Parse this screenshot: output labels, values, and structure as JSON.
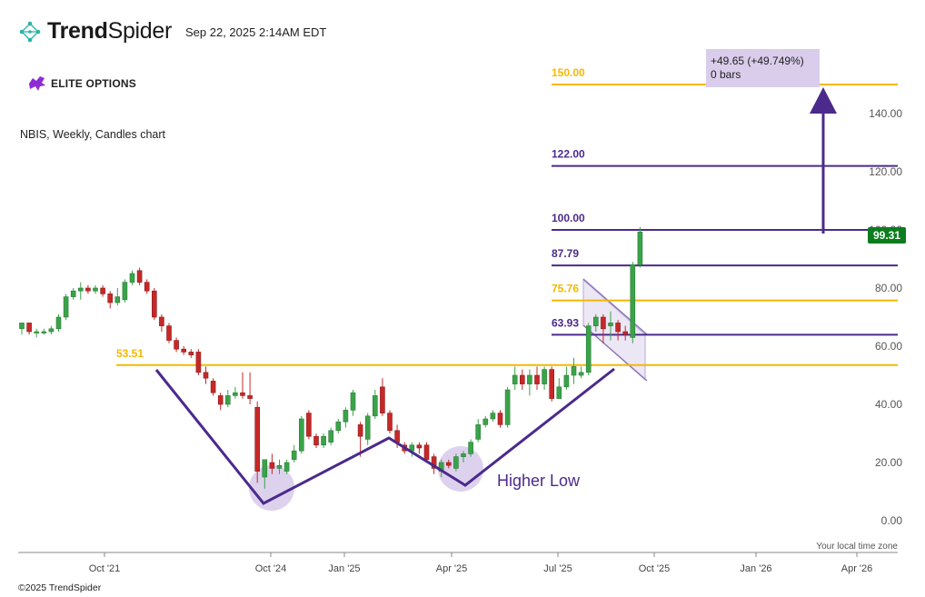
{
  "header": {
    "brand_bold": "Trend",
    "brand_light": "Spider",
    "timestamp": "Sep 22, 2025 2:14AM EDT",
    "logo_icon": "trendspider-dots-icon"
  },
  "watermark": {
    "text": "ELITE OPTIONS",
    "icon": "purple-bull-icon"
  },
  "footer": {
    "copyright": "©2025 TrendSpider",
    "timezone_note": "Your local time zone"
  },
  "colors": {
    "up": "#3aa34a",
    "down": "#c62828",
    "purple": "#4b2a8c",
    "gold": "#f5b800",
    "price_tag": "#0b7d1e",
    "highlight": "#d9cdeb"
  },
  "chart_data": {
    "type": "candlestick",
    "title": "NBIS, Weekly, Candles chart",
    "ylim": [
      -4,
      152
    ],
    "y_ticks": [
      0,
      20,
      40,
      60,
      80,
      100,
      120,
      140
    ],
    "y_tick_labels": [
      "0.00",
      "20.00",
      "40.00",
      "60.00",
      "80.00",
      "100.00",
      "120.00",
      "140.00"
    ],
    "x_tick_labels": [
      "Oct '21",
      "Oct '24",
      "Jan '25",
      "Apr '25",
      "Jul '25",
      "Oct '25",
      "Jan '26",
      "Apr '26"
    ],
    "last_price": "99.31",
    "candles": [
      {
        "o": 66,
        "h": 68,
        "l": 64,
        "c": 68
      },
      {
        "o": 68,
        "h": 68,
        "l": 64,
        "c": 65
      },
      {
        "o": 65,
        "h": 66,
        "l": 63,
        "c": 65
      },
      {
        "o": 65,
        "h": 66,
        "l": 64,
        "c": 65
      },
      {
        "o": 65,
        "h": 67,
        "l": 64,
        "c": 66
      },
      {
        "o": 66,
        "h": 71,
        "l": 65,
        "c": 70
      },
      {
        "o": 70,
        "h": 78,
        "l": 69,
        "c": 77
      },
      {
        "o": 77,
        "h": 80,
        "l": 76,
        "c": 79
      },
      {
        "o": 79,
        "h": 82,
        "l": 76,
        "c": 80
      },
      {
        "o": 80,
        "h": 81,
        "l": 78,
        "c": 79
      },
      {
        "o": 79,
        "h": 81,
        "l": 78,
        "c": 80
      },
      {
        "o": 80,
        "h": 81,
        "l": 77,
        "c": 78
      },
      {
        "o": 78,
        "h": 79,
        "l": 73,
        "c": 75
      },
      {
        "o": 75,
        "h": 80,
        "l": 74,
        "c": 77
      },
      {
        "o": 76,
        "h": 83,
        "l": 75,
        "c": 82
      },
      {
        "o": 82,
        "h": 86,
        "l": 81,
        "c": 85
      },
      {
        "o": 86,
        "h": 87,
        "l": 81,
        "c": 82
      },
      {
        "o": 82,
        "h": 83,
        "l": 78,
        "c": 79
      },
      {
        "o": 79,
        "h": 80,
        "l": 69,
        "c": 70
      },
      {
        "o": 70,
        "h": 71,
        "l": 65,
        "c": 67
      },
      {
        "o": 67,
        "h": 68,
        "l": 61,
        "c": 62
      },
      {
        "o": 62,
        "h": 63,
        "l": 58,
        "c": 59
      },
      {
        "o": 59,
        "h": 60,
        "l": 57,
        "c": 58
      },
      {
        "o": 58,
        "h": 59,
        "l": 56,
        "c": 57
      },
      {
        "o": 58,
        "h": 59,
        "l": 50,
        "c": 51
      },
      {
        "o": 51,
        "h": 53,
        "l": 47,
        "c": 49
      },
      {
        "o": 48,
        "h": 49,
        "l": 43,
        "c": 44
      },
      {
        "o": 43,
        "h": 44,
        "l": 38,
        "c": 40
      },
      {
        "o": 40,
        "h": 45,
        "l": 39,
        "c": 43
      },
      {
        "o": 43,
        "h": 46,
        "l": 42,
        "c": 44
      },
      {
        "o": 44,
        "h": 51,
        "l": 42,
        "c": 43
      },
      {
        "o": 43,
        "h": 51,
        "l": 40,
        "c": 42
      },
      {
        "o": 39,
        "h": 41,
        "l": 13,
        "c": 17
      },
      {
        "o": 15,
        "h": 21,
        "l": 11,
        "c": 21
      },
      {
        "o": 20,
        "h": 23,
        "l": 16,
        "c": 18
      },
      {
        "o": 18,
        "h": 21,
        "l": 16,
        "c": 19
      },
      {
        "o": 17,
        "h": 21,
        "l": 16,
        "c": 20
      },
      {
        "o": 21,
        "h": 26,
        "l": 20,
        "c": 24
      },
      {
        "o": 24,
        "h": 36,
        "l": 23,
        "c": 35
      },
      {
        "o": 37,
        "h": 38,
        "l": 28,
        "c": 29
      },
      {
        "o": 29,
        "h": 30,
        "l": 25,
        "c": 26
      },
      {
        "o": 26,
        "h": 30,
        "l": 25,
        "c": 29
      },
      {
        "o": 27,
        "h": 32,
        "l": 26,
        "c": 31
      },
      {
        "o": 31,
        "h": 35,
        "l": 30,
        "c": 34
      },
      {
        "o": 34,
        "h": 39,
        "l": 32,
        "c": 38
      },
      {
        "o": 38,
        "h": 45,
        "l": 36,
        "c": 44
      },
      {
        "o": 33,
        "h": 34,
        "l": 22,
        "c": 29
      },
      {
        "o": 28,
        "h": 37,
        "l": 26,
        "c": 36
      },
      {
        "o": 36,
        "h": 45,
        "l": 35,
        "c": 43
      },
      {
        "o": 46,
        "h": 49,
        "l": 36,
        "c": 37
      },
      {
        "o": 37,
        "h": 38,
        "l": 30,
        "c": 31
      },
      {
        "o": 31,
        "h": 33,
        "l": 25,
        "c": 27
      },
      {
        "o": 26,
        "h": 27,
        "l": 23,
        "c": 24
      },
      {
        "o": 24,
        "h": 27,
        "l": 22,
        "c": 26
      },
      {
        "o": 26,
        "h": 27,
        "l": 23,
        "c": 25
      },
      {
        "o": 26,
        "h": 27,
        "l": 20,
        "c": 21
      },
      {
        "o": 22,
        "h": 23,
        "l": 16,
        "c": 18
      },
      {
        "o": 17,
        "h": 21,
        "l": 15,
        "c": 20
      },
      {
        "o": 20,
        "h": 21,
        "l": 18,
        "c": 19
      },
      {
        "o": 18,
        "h": 23,
        "l": 17,
        "c": 22
      },
      {
        "o": 22,
        "h": 24,
        "l": 20,
        "c": 23
      },
      {
        "o": 23,
        "h": 28,
        "l": 22,
        "c": 27
      },
      {
        "o": 28,
        "h": 35,
        "l": 27,
        "c": 33
      },
      {
        "o": 33,
        "h": 36,
        "l": 32,
        "c": 35
      },
      {
        "o": 35,
        "h": 38,
        "l": 34,
        "c": 37
      },
      {
        "o": 37,
        "h": 38,
        "l": 32,
        "c": 33
      },
      {
        "o": 33,
        "h": 46,
        "l": 32,
        "c": 45
      },
      {
        "o": 47,
        "h": 53,
        "l": 45,
        "c": 50
      },
      {
        "o": 50,
        "h": 52,
        "l": 45,
        "c": 47
      },
      {
        "o": 47,
        "h": 52,
        "l": 43,
        "c": 50
      },
      {
        "o": 50,
        "h": 53,
        "l": 45,
        "c": 47
      },
      {
        "o": 47,
        "h": 53,
        "l": 45,
        "c": 52
      },
      {
        "o": 52,
        "h": 53,
        "l": 41,
        "c": 42
      },
      {
        "o": 42,
        "h": 49,
        "l": 42,
        "c": 46
      },
      {
        "o": 46,
        "h": 53,
        "l": 45,
        "c": 50
      },
      {
        "o": 50,
        "h": 56,
        "l": 47,
        "c": 53
      },
      {
        "o": 50,
        "h": 53,
        "l": 49,
        "c": 51
      },
      {
        "o": 51,
        "h": 68,
        "l": 50,
        "c": 67
      },
      {
        "o": 67,
        "h": 71,
        "l": 65,
        "c": 70
      },
      {
        "o": 70,
        "h": 71,
        "l": 61,
        "c": 66
      },
      {
        "o": 67,
        "h": 72,
        "l": 62,
        "c": 68
      },
      {
        "o": 68,
        "h": 69,
        "l": 62,
        "c": 65
      },
      {
        "o": 65,
        "h": 67,
        "l": 62,
        "c": 64
      },
      {
        "o": 63,
        "h": 89,
        "l": 61,
        "c": 88
      },
      {
        "o": 88,
        "h": 101,
        "l": 87,
        "c": 99.31
      }
    ],
    "levels": [
      {
        "value": 150,
        "label": "150.00",
        "color": "gold"
      },
      {
        "value": 122,
        "label": "122.00",
        "color": "purple"
      },
      {
        "value": 100,
        "label": "100.00",
        "color": "purple"
      },
      {
        "value": 87.79,
        "label": "87.79",
        "color": "purple"
      },
      {
        "value": 75.76,
        "label": "75.76",
        "color": "gold"
      },
      {
        "value": 63.93,
        "label": "63.93",
        "color": "purple"
      },
      {
        "value": 53.51,
        "label": "53.51",
        "color": "gold"
      }
    ],
    "measure_box": {
      "line1": "+49.65 (+49.749%)",
      "line2": "0 bars"
    },
    "annotations": {
      "higher_low": "Higher Low"
    }
  }
}
